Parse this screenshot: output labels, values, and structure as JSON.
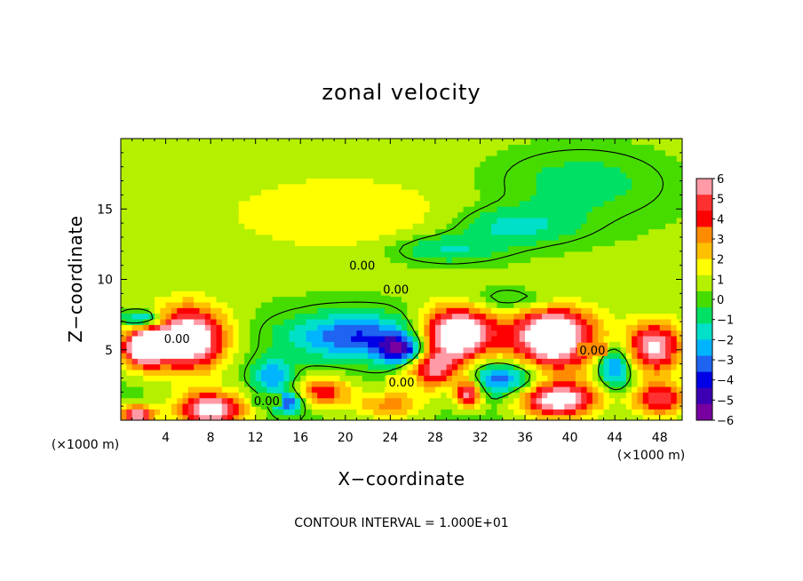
{
  "chart_data": {
    "type": "heatmap",
    "title": "zonal velocity",
    "xlabel": "X−coordinate",
    "ylabel": "Z−coordinate",
    "x_unit_left": "(×1000 m)",
    "x_unit_right": "(×1000 m)",
    "xlim": [
      0,
      50
    ],
    "ylim": [
      0,
      20
    ],
    "xticks": [
      4,
      8,
      12,
      16,
      20,
      24,
      28,
      32,
      36,
      40,
      44,
      48
    ],
    "xtick_labels": [
      "4",
      "8",
      "12",
      "16",
      "20",
      "24",
      "28",
      "32",
      "36",
      "40",
      "44",
      "48"
    ],
    "yticks": [
      5,
      10,
      15
    ],
    "ytick_labels": [
      "5",
      "10",
      "15"
    ],
    "colorbar": {
      "min": -6,
      "max": 6,
      "tick_labels": [
        "6",
        "5",
        "4",
        "3",
        "2",
        "1",
        "0",
        "−1",
        "−2",
        "−3",
        "−4",
        "−5",
        "−6"
      ],
      "colors": [
        "#ff9aa6",
        "#ff3030",
        "#ff0000",
        "#ff8c00",
        "#ffc000",
        "#ffff00",
        "#b4f000",
        "#46dc00",
        "#00e064",
        "#00e0c8",
        "#00b4ff",
        "#1e64f0",
        "#0000e6",
        "#3c00b4",
        "#7800a0"
      ]
    },
    "contour_labels": [
      {
        "text": "0.00",
        "x": 42.0,
        "y": 5.0
      },
      {
        "text": "0.00",
        "x": 5.0,
        "y": 5.8
      },
      {
        "text": "0.00",
        "x": 21.5,
        "y": 11.0
      },
      {
        "text": "0.00",
        "x": 24.5,
        "y": 9.3
      },
      {
        "text": "0.00",
        "x": 25.0,
        "y": 2.7
      },
      {
        "text": "0.00",
        "x": 13.0,
        "y": 1.4
      }
    ],
    "footer": "CONTOUR INTERVAL = 1.000E+01",
    "field_blobs": [
      {
        "x": 6,
        "y": 5.8,
        "rx": 3.2,
        "ry": 2.2,
        "v": 8
      },
      {
        "x": 2,
        "y": 5.2,
        "rx": 2.0,
        "ry": 1.4,
        "v": 7
      },
      {
        "x": 8,
        "y": 0.8,
        "rx": 3.0,
        "ry": 1.2,
        "v": 7
      },
      {
        "x": 1.5,
        "y": 0.4,
        "rx": 1.5,
        "ry": 0.7,
        "v": 6
      },
      {
        "x": 18,
        "y": 2.0,
        "rx": 2.5,
        "ry": 1.1,
        "v": 4
      },
      {
        "x": 24,
        "y": 1.1,
        "rx": 3.0,
        "ry": 1.0,
        "v": 3
      },
      {
        "x": 30,
        "y": 6.2,
        "rx": 3.3,
        "ry": 1.9,
        "v": 8
      },
      {
        "x": 28,
        "y": 3.6,
        "rx": 2.6,
        "ry": 1.4,
        "v": 5
      },
      {
        "x": 31,
        "y": 2.0,
        "rx": 1.2,
        "ry": 1.0,
        "v": 6
      },
      {
        "x": 38.5,
        "y": 5.9,
        "rx": 3.8,
        "ry": 2.4,
        "v": 8
      },
      {
        "x": 39,
        "y": 1.5,
        "rx": 3.5,
        "ry": 1.3,
        "v": 7
      },
      {
        "x": 48,
        "y": 1.5,
        "rx": 2.4,
        "ry": 1.2,
        "v": 5
      },
      {
        "x": 47.5,
        "y": 5.2,
        "rx": 2.5,
        "ry": 1.8,
        "v": 6
      },
      {
        "x": 21,
        "y": 6.0,
        "rx": 6.0,
        "ry": 1.6,
        "v": -4
      },
      {
        "x": 25,
        "y": 5.0,
        "rx": 2.0,
        "ry": 1.0,
        "v": -5
      },
      {
        "x": 35,
        "y": 13.8,
        "rx": 5.5,
        "ry": 1.3,
        "v": -2
      },
      {
        "x": 29,
        "y": 12.2,
        "rx": 5.0,
        "ry": 1.0,
        "v": -2
      },
      {
        "x": 41,
        "y": 17.0,
        "rx": 9.0,
        "ry": 3.0,
        "v": -1.5
      },
      {
        "x": 36,
        "y": 8.5,
        "rx": 5.0,
        "ry": 0.9,
        "v": -2
      },
      {
        "x": 2,
        "y": 7.2,
        "rx": 1.8,
        "ry": 0.6,
        "v": -4
      },
      {
        "x": 13.5,
        "y": 3.2,
        "rx": 1.8,
        "ry": 1.2,
        "v": -3
      },
      {
        "x": 34,
        "y": 3.0,
        "rx": 4.0,
        "ry": 1.2,
        "v": -4
      },
      {
        "x": 44,
        "y": 3.8,
        "rx": 1.5,
        "ry": 1.5,
        "v": -4
      },
      {
        "x": 15,
        "y": 1.3,
        "rx": 1.4,
        "ry": 0.8,
        "v": -4
      },
      {
        "x": 20,
        "y": 14.5,
        "rx": 10,
        "ry": 2.5,
        "v": 1.3
      }
    ]
  }
}
